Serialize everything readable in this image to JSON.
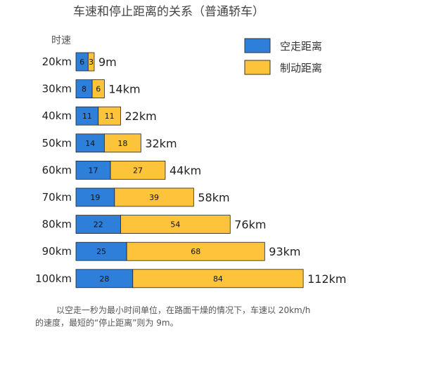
{
  "chart_data": {
    "type": "bar",
    "orientation": "horizontal",
    "stacked": true,
    "title": "车速和停止距离的关系（普通轿车）",
    "ylabel": "时速",
    "categories": [
      "20km",
      "30km",
      "40km",
      "50km",
      "60km",
      "70km",
      "80km",
      "90km",
      "100km"
    ],
    "series": [
      {
        "name": "空走距离",
        "color": "#2E7FD9",
        "values": [
          6,
          8,
          11,
          14,
          17,
          19,
          22,
          25,
          28
        ]
      },
      {
        "name": "制动距离",
        "color": "#FDC33B",
        "values": [
          3,
          6,
          11,
          18,
          27,
          39,
          54,
          68,
          84
        ]
      }
    ],
    "totals": [
      "9m",
      "14km",
      "22km",
      "32km",
      "44km",
      "58km",
      "76km",
      "93km",
      "112km"
    ],
    "xlim": [
      0,
      112
    ],
    "legend_position": "top-right",
    "grid": false,
    "note_lines": [
      "以空走一秒为最小时间单位，在路面干燥的情况下，车速以 20km/h",
      "的速度，最短的“停止距离”则为 9m。"
    ]
  }
}
